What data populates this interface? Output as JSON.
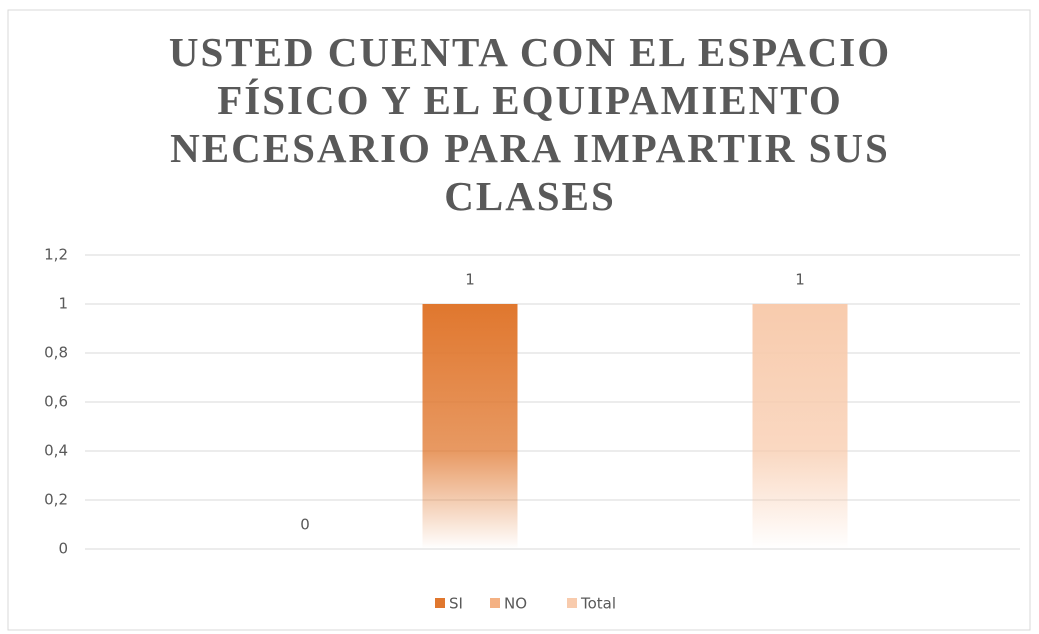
{
  "chart_data": {
    "type": "bar",
    "title": "USTED CUENTA CON EL ESPACIO FÍSICO Y EL EQUIPAMIENTO NECESARIO PARA IMPARTIR SUS CLASES",
    "categories": [
      null
    ],
    "series": [
      {
        "name": "SI",
        "color": "#E0772E",
        "values": [
          1
        ]
      },
      {
        "name": "NO",
        "color": "#F4B183",
        "values": [
          0
        ]
      },
      {
        "name": "Total",
        "color": "#F8CBAD",
        "values": [
          1
        ]
      }
    ],
    "ylim": [
      0,
      1.2
    ],
    "yticks": [
      0,
      {
        "value": 0.2,
        "label": "0,2"
      },
      {
        "value": 0.4,
        "label": "0,4"
      },
      {
        "value": 0.6,
        "label": "0,6"
      },
      {
        "value": 0.8,
        "label": "0,8"
      },
      1,
      {
        "value": 1.2,
        "label": "1,2"
      }
    ],
    "grid": true,
    "legend": "bottom"
  }
}
